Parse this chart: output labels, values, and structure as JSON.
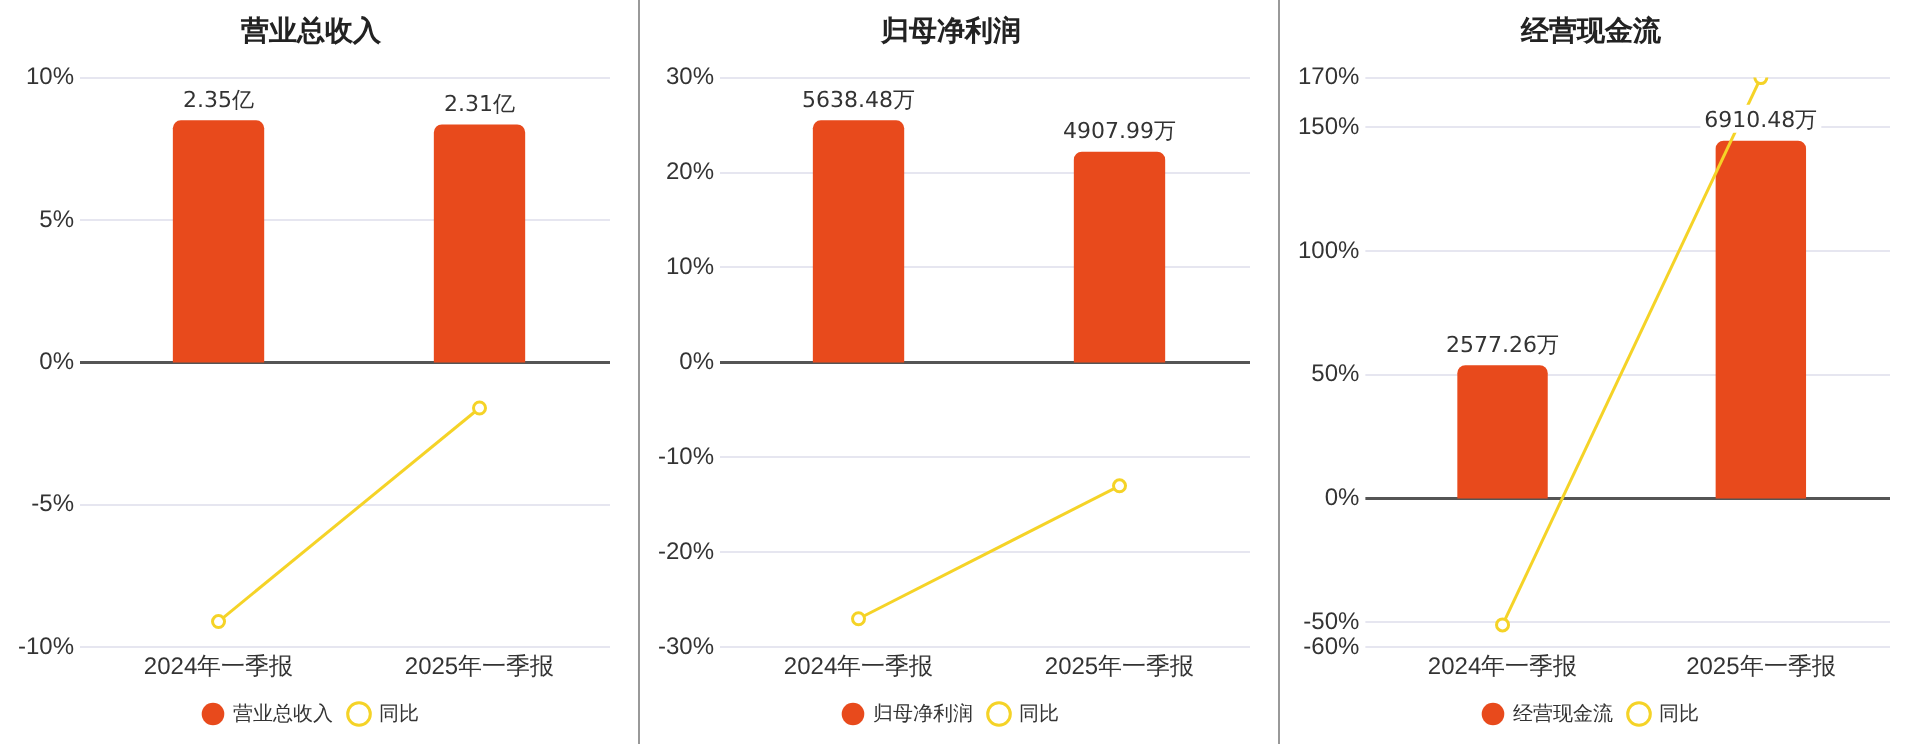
{
  "chart_data": [
    {
      "type": "bar",
      "title": "营业总收入",
      "categories": [
        "2024年一季报",
        "2025年一季报"
      ],
      "series": [
        {
          "name": "营业总收入",
          "axis": "y2",
          "color": "#e84a1c",
          "values": [
            2.35,
            2.31
          ],
          "value_labels": [
            "2.35亿",
            "2.31亿"
          ]
        },
        {
          "name": "同比",
          "type": "line",
          "color": "#f5d327",
          "values": [
            -9.1,
            -1.6
          ]
        }
      ],
      "ylim": [
        -10,
        10
      ],
      "yticks": [
        {
          "value": -10,
          "label": "-10%"
        },
        {
          "value": -5,
          "label": "-5%"
        },
        {
          "value": 0,
          "label": "0%"
        },
        {
          "value": 5,
          "label": "5%"
        },
        {
          "value": 10,
          "label": "10%"
        }
      ],
      "grid": "y",
      "legend": "bottom",
      "marker": "circle"
    },
    {
      "type": "bar",
      "title": "归母净利润",
      "categories": [
        "2024年一季报",
        "2025年一季报"
      ],
      "series": [
        {
          "name": "归母净利润",
          "axis": "y2",
          "color": "#e84a1c",
          "values": [
            5638.48,
            4907.99
          ],
          "value_labels": [
            "5638.48万",
            "4907.99万"
          ]
        },
        {
          "name": "同比",
          "type": "line",
          "color": "#f5d327",
          "values": [
            -27,
            -13
          ]
        }
      ],
      "ylim": [
        -30,
        30
      ],
      "yticks": [
        {
          "value": -30,
          "label": "-30%"
        },
        {
          "value": -20,
          "label": "-20%"
        },
        {
          "value": -10,
          "label": "-10%"
        },
        {
          "value": 0,
          "label": "0%"
        },
        {
          "value": 10,
          "label": "10%"
        },
        {
          "value": 20,
          "label": "20%"
        },
        {
          "value": 30,
          "label": "30%"
        }
      ],
      "grid": "y",
      "legend": "bottom",
      "marker": "circle"
    },
    {
      "type": "bar",
      "title": "经营现金流",
      "categories": [
        "2024年一季报",
        "2025年一季报"
      ],
      "series": [
        {
          "name": "经营现金流",
          "axis": "y2",
          "color": "#e84a1c",
          "values": [
            2577.26,
            6910.48
          ],
          "value_labels": [
            "2577.26万",
            "6910.48万"
          ]
        },
        {
          "name": "同比",
          "type": "line",
          "color": "#f5d327",
          "values": [
            -51,
            170
          ]
        }
      ],
      "ylim": [
        -60,
        170
      ],
      "yticks": [
        {
          "value": -60,
          "label": "-60%"
        },
        {
          "value": -50,
          "label": "-50%"
        },
        {
          "value": 0,
          "label": "0%"
        },
        {
          "value": 50,
          "label": "50%"
        },
        {
          "value": 100,
          "label": "100%"
        },
        {
          "value": 150,
          "label": "150%"
        },
        {
          "value": 170,
          "label": "170%"
        }
      ],
      "grid": "y",
      "legend": "bottom",
      "marker": "circle"
    }
  ]
}
